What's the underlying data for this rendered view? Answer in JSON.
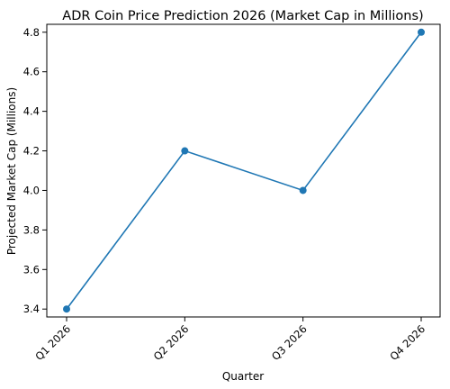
{
  "chart_data": {
    "type": "line",
    "title": "ADR Coin Price Prediction 2026 (Market Cap in Millions)",
    "xlabel": "Quarter",
    "ylabel": "Projected Market Cap (Millions)",
    "categories": [
      "Q1 2026",
      "Q2 2026",
      "Q3 2026",
      "Q4 2026"
    ],
    "series": [
      {
        "values": [
          3.4,
          4.2,
          4.0,
          4.8
        ]
      }
    ],
    "ylim": [
      3.36,
      4.84
    ],
    "yticks": [
      "3.4",
      "3.6",
      "3.8",
      "4.0",
      "4.2",
      "4.4",
      "4.6",
      "4.8"
    ],
    "grid": false,
    "legend": "none",
    "line_color": "#1f77b4",
    "marker": "circle"
  }
}
